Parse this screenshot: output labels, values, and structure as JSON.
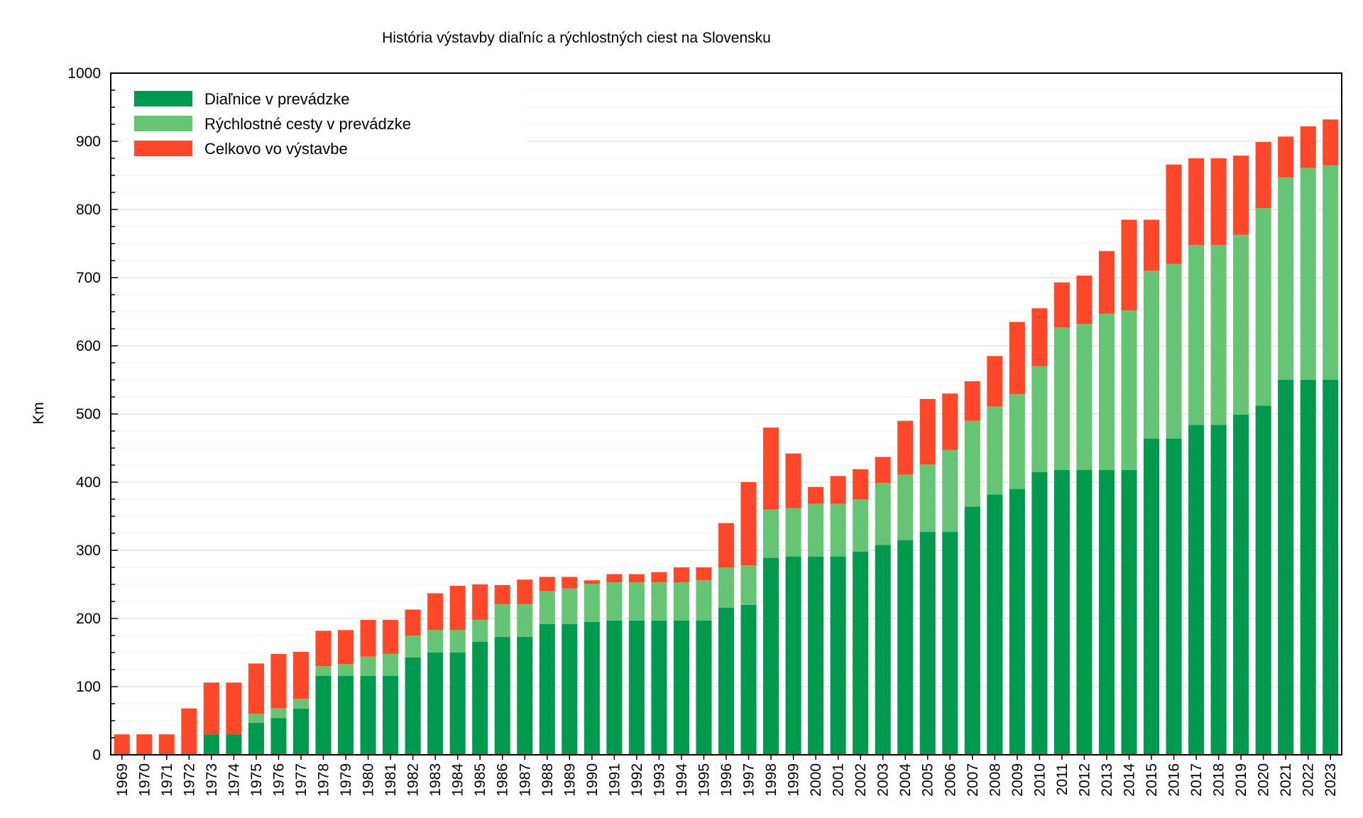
{
  "chart_data": {
    "type": "bar",
    "stacked": true,
    "title": "História výstavby diaľníc a rýchlostných ciest na Slovensku",
    "xlabel": "",
    "ylabel": "Km",
    "ylim": [
      0,
      1000
    ],
    "yticks": [
      "0",
      "100",
      "200",
      "300",
      "400",
      "500",
      "600",
      "700",
      "800",
      "900",
      "1000"
    ],
    "grid": true,
    "legend_position": "top-left",
    "categories": [
      "1969",
      "1970",
      "1971",
      "1972",
      "1973",
      "1974",
      "1975",
      "1976",
      "1977",
      "1978",
      "1979",
      "1980",
      "1981",
      "1982",
      "1983",
      "1984",
      "1985",
      "1986",
      "1987",
      "1988",
      "1989",
      "1990",
      "1991",
      "1992",
      "1993",
      "1994",
      "1995",
      "1996",
      "1997",
      "1998",
      "1999",
      "2000",
      "2001",
      "2002",
      "2003",
      "2004",
      "2005",
      "2006",
      "2007",
      "2008",
      "2009",
      "2010",
      "2011",
      "2012",
      "2013",
      "2014",
      "2015",
      "2016",
      "2017",
      "2018",
      "2019",
      "2020",
      "2021",
      "2022",
      "2023"
    ],
    "series": [
      {
        "name": "Diaľnice v prevádzke",
        "color": "#009a4e",
        "values": [
          0,
          0,
          0,
          0,
          30,
          30,
          47,
          54,
          68,
          116,
          116,
          116,
          116,
          143,
          150,
          150,
          166,
          173,
          173,
          192,
          192,
          195,
          197,
          197,
          197,
          197,
          197,
          216,
          220,
          289,
          291,
          291,
          291,
          298,
          308,
          315,
          327,
          327,
          364,
          382,
          390,
          415,
          418,
          418,
          418,
          418,
          464,
          464,
          484,
          484,
          499,
          512,
          550,
          550,
          550
        ]
      },
      {
        "name": "Rýchlostné cesty v prevádzke",
        "color": "#66c575",
        "values": [
          0,
          0,
          0,
          0,
          0,
          0,
          13,
          14,
          14,
          14,
          17,
          28,
          32,
          32,
          33,
          33,
          32,
          48,
          48,
          48,
          52,
          56,
          56,
          56,
          56,
          56,
          59,
          59,
          58,
          71,
          71,
          77,
          77,
          77,
          91,
          96,
          99,
          120,
          126,
          129,
          139,
          155,
          209,
          214,
          229,
          234,
          246,
          256,
          264,
          264,
          264,
          290,
          297,
          311,
          315
        ]
      },
      {
        "name": "Celkovo vo výstavbe",
        "color": "#ff4829",
        "values": [
          30,
          30,
          30,
          68,
          76,
          76,
          74,
          80,
          69,
          52,
          50,
          54,
          50,
          38,
          54,
          65,
          52,
          28,
          36,
          21,
          17,
          5,
          12,
          12,
          15,
          22,
          19,
          65,
          122,
          120,
          80,
          25,
          41,
          44,
          38,
          79,
          96,
          83,
          58,
          74,
          106,
          85,
          66,
          71,
          92,
          133,
          75,
          146,
          127,
          127,
          116,
          97,
          60,
          61,
          67
        ]
      }
    ]
  }
}
